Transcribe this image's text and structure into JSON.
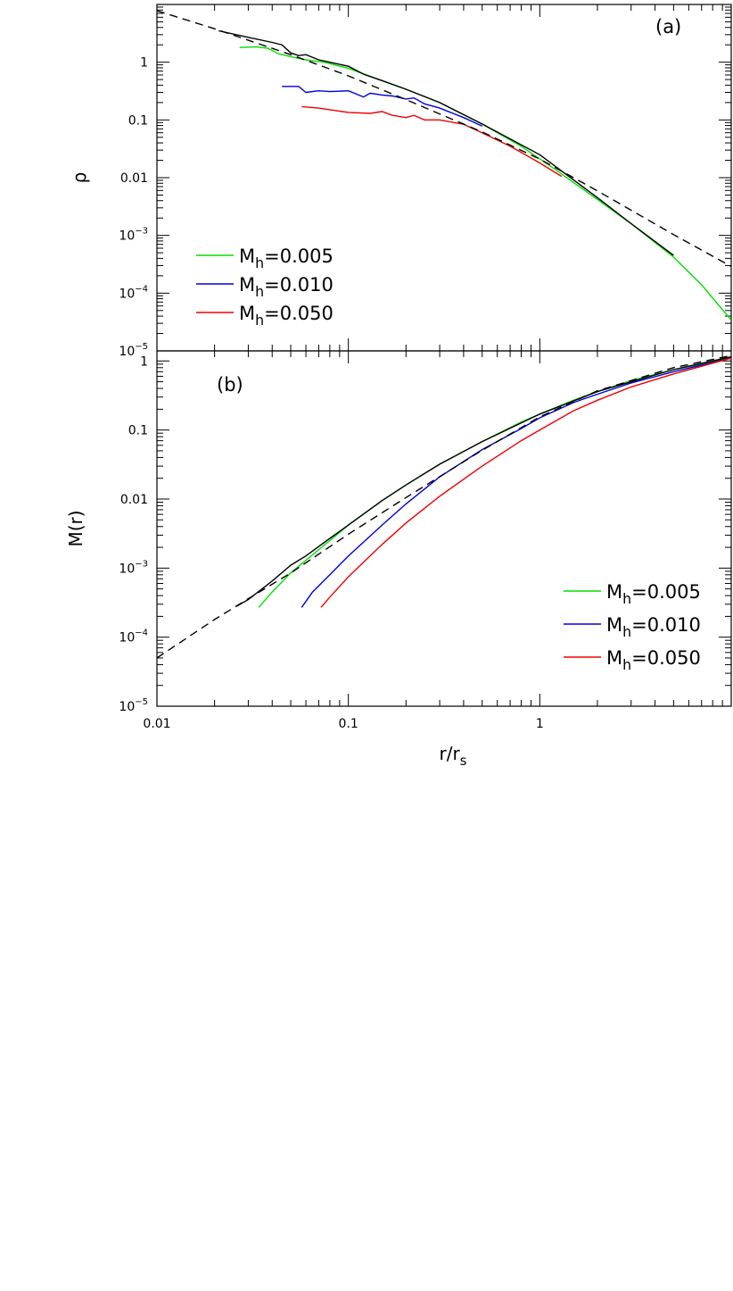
{
  "chart_data": [
    {
      "type": "line",
      "panel_label": "(a)",
      "xscale": "log",
      "yscale": "log",
      "xlim": [
        0.01,
        10
      ],
      "ylim": [
        1e-05,
        10
      ],
      "xlabel": "",
      "ylabel": "ρ",
      "yticks": [
        {
          "value": 1,
          "label": "1"
        },
        {
          "value": 0.1,
          "label": "0.1"
        },
        {
          "value": 0.01,
          "label": "0.01"
        },
        {
          "value": 0.001,
          "label": "10",
          "exp": "−3"
        },
        {
          "value": 0.0001,
          "label": "10",
          "exp": "−4"
        },
        {
          "value": 1e-05,
          "label": "10",
          "exp": "−5"
        }
      ],
      "legend_position": "bottom-left",
      "series": [
        {
          "name": "M",
          "sub": "h",
          "value": "=0.005",
          "color": "#00dd00",
          "style": "solid",
          "x": [
            0.027,
            0.033,
            0.038,
            0.043,
            0.05,
            0.06,
            0.075,
            0.1,
            0.15,
            0.2,
            0.3,
            0.5,
            0.8,
            1.2,
            2,
            3,
            5,
            7,
            10
          ],
          "y": [
            1.8,
            1.85,
            1.75,
            1.4,
            1.25,
            1.1,
            1.0,
            0.78,
            0.48,
            0.34,
            0.2,
            0.085,
            0.035,
            0.014,
            0.0042,
            0.0016,
            0.00042,
            0.00014,
            3.4e-05
          ]
        },
        {
          "name": "M",
          "sub": "h",
          "value": "=0.010",
          "color": "#0000dd",
          "style": "solid",
          "x": [
            0.045,
            0.055,
            0.06,
            0.07,
            0.08,
            0.1,
            0.12,
            0.13,
            0.15,
            0.17,
            0.2,
            0.22,
            0.25,
            0.3,
            0.4,
            0.5
          ],
          "y": [
            0.38,
            0.38,
            0.3,
            0.32,
            0.31,
            0.32,
            0.25,
            0.29,
            0.27,
            0.26,
            0.23,
            0.24,
            0.19,
            0.16,
            0.11,
            0.078
          ]
        },
        {
          "name": "M",
          "sub": "h",
          "value": "=0.050",
          "color": "#ee0000",
          "style": "solid",
          "x": [
            0.057,
            0.07,
            0.08,
            0.1,
            0.13,
            0.15,
            0.17,
            0.2,
            0.22,
            0.25,
            0.3,
            0.4,
            0.5,
            0.7,
            1.0,
            1.3
          ],
          "y": [
            0.17,
            0.16,
            0.15,
            0.135,
            0.13,
            0.14,
            0.12,
            0.11,
            0.12,
            0.1,
            0.1,
            0.084,
            0.06,
            0.035,
            0.018,
            0.0105
          ]
        },
        {
          "name": "",
          "color": "#000000",
          "style": "solid",
          "x": [
            0.021,
            0.03,
            0.04,
            0.045,
            0.05,
            0.055,
            0.06,
            0.07,
            0.08,
            0.1,
            0.12,
            0.15,
            0.2,
            0.3,
            0.5,
            1,
            2,
            3,
            5
          ],
          "y": [
            3.5,
            2.7,
            2.2,
            2.0,
            1.45,
            1.3,
            1.35,
            1.1,
            1.0,
            0.85,
            0.62,
            0.48,
            0.34,
            0.2,
            0.085,
            0.025,
            0.0045,
            0.0016,
            0.00045
          ]
        },
        {
          "name": "",
          "color": "#000000",
          "style": "dashed",
          "x": [
            0.01,
            0.02,
            0.05,
            0.1,
            0.2,
            0.5,
            1,
            2,
            5,
            10
          ],
          "y": [
            7.8,
            3.8,
            1.35,
            0.58,
            0.225,
            0.062,
            0.021,
            0.0059,
            0.00103,
            0.00029
          ]
        }
      ]
    },
    {
      "type": "line",
      "panel_label": "(b)",
      "xscale": "log",
      "yscale": "log",
      "xlim": [
        0.01,
        10
      ],
      "ylim": [
        1e-05,
        1.4
      ],
      "xlabel": "r/r",
      "xlabel_sub": "s",
      "ylabel": "M(r)",
      "xticks": [
        {
          "value": 0.01,
          "label": "0.01"
        },
        {
          "value": 0.1,
          "label": "0.1"
        },
        {
          "value": 1,
          "label": "1"
        }
      ],
      "yticks": [
        {
          "value": 1,
          "label": "1"
        },
        {
          "value": 0.1,
          "label": "0.1"
        },
        {
          "value": 0.01,
          "label": "0.01"
        },
        {
          "value": 0.001,
          "label": "10",
          "exp": "−3"
        },
        {
          "value": 0.0001,
          "label": "10",
          "exp": "−4"
        },
        {
          "value": 1e-05,
          "label": "10",
          "exp": "−5"
        }
      ],
      "legend_position": "bottom-right",
      "series": [
        {
          "name": "M",
          "sub": "h",
          "value": "=0.005",
          "color": "#00dd00",
          "style": "solid",
          "x": [
            0.034,
            0.04,
            0.05,
            0.06,
            0.08,
            0.1,
            0.15,
            0.2,
            0.3,
            0.5,
            0.8,
            1,
            1.5,
            2,
            3,
            5,
            10
          ],
          "y": [
            0.00027,
            0.00045,
            0.00085,
            0.0013,
            0.0025,
            0.0042,
            0.0095,
            0.016,
            0.032,
            0.068,
            0.13,
            0.17,
            0.27,
            0.36,
            0.52,
            0.75,
            1.1
          ]
        },
        {
          "name": "M",
          "sub": "h",
          "value": "=0.010",
          "color": "#0000dd",
          "style": "solid",
          "x": [
            0.057,
            0.065,
            0.08,
            0.1,
            0.15,
            0.2,
            0.3,
            0.5,
            0.8,
            1,
            1.5,
            2,
            3,
            5,
            10
          ],
          "y": [
            0.00027,
            0.00045,
            0.0008,
            0.0015,
            0.0042,
            0.0085,
            0.021,
            0.052,
            0.105,
            0.15,
            0.25,
            0.33,
            0.48,
            0.7,
            1.1
          ]
        },
        {
          "name": "M",
          "sub": "h",
          "value": "=0.050",
          "color": "#ee0000",
          "style": "solid",
          "x": [
            0.072,
            0.08,
            0.1,
            0.15,
            0.2,
            0.3,
            0.5,
            0.8,
            1,
            1.5,
            2,
            3,
            5,
            10
          ],
          "y": [
            0.00027,
            0.00038,
            0.00075,
            0.0022,
            0.0045,
            0.011,
            0.03,
            0.07,
            0.1,
            0.19,
            0.27,
            0.42,
            0.65,
            1.1
          ]
        },
        {
          "name": "",
          "color": "#000000",
          "style": "solid",
          "x": [
            0.026,
            0.03,
            0.04,
            0.05,
            0.06,
            0.08,
            0.1,
            0.15,
            0.2,
            0.3,
            0.5,
            1,
            2,
            5,
            10
          ],
          "y": [
            0.00028,
            0.00035,
            0.00065,
            0.0011,
            0.0015,
            0.0027,
            0.0042,
            0.0095,
            0.016,
            0.032,
            0.068,
            0.17,
            0.36,
            0.75,
            1.15
          ]
        },
        {
          "name": "",
          "color": "#000000",
          "style": "dashed",
          "x": [
            0.01,
            0.02,
            0.03,
            0.05,
            0.1,
            0.2,
            0.5,
            1,
            2,
            5,
            10
          ],
          "y": [
            5e-05,
            0.00018,
            0.00036,
            0.00085,
            0.0031,
            0.0105,
            0.051,
            0.155,
            0.37,
            0.8,
            1.2
          ]
        }
      ]
    }
  ]
}
